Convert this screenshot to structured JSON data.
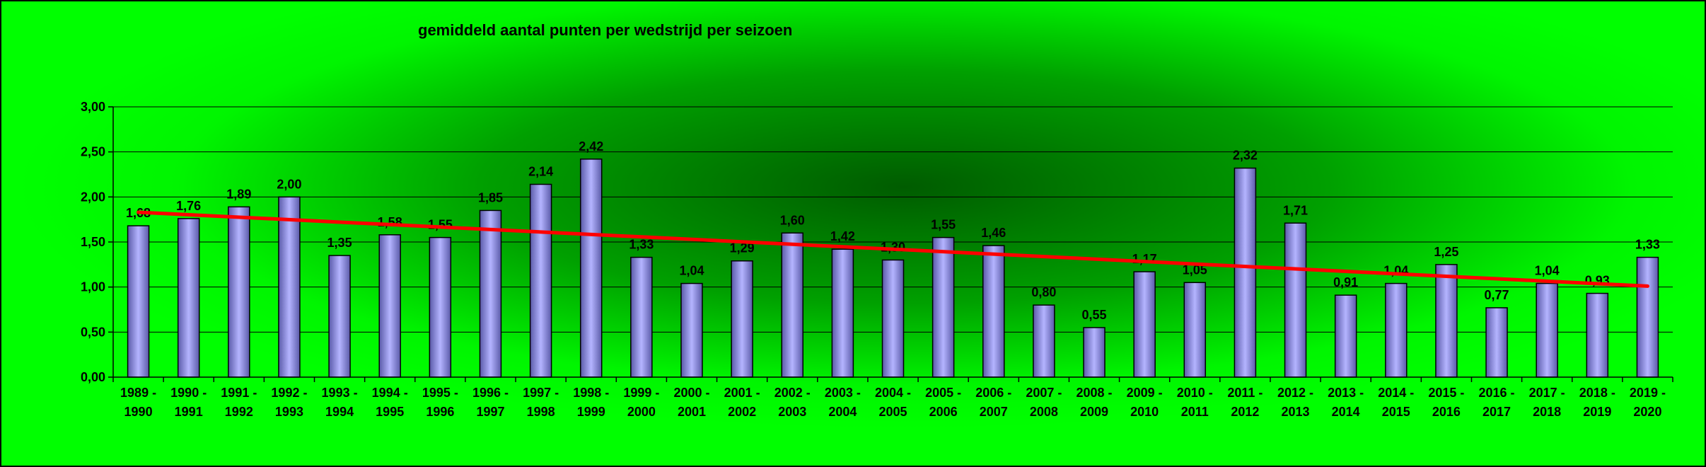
{
  "chart_data": {
    "type": "bar",
    "title": "gemiddeld aantal punten per wedstrijd per seizoen",
    "xlabel": "",
    "ylabel": "",
    "ylim": [
      0,
      3
    ],
    "ytick_values": [
      0,
      0.5,
      1,
      1.5,
      2,
      2.5,
      3
    ],
    "ytick_labels": [
      "0,00",
      "0,50",
      "1,00",
      "1,50",
      "2,00",
      "2,50",
      "3,00"
    ],
    "grid": true,
    "legend": "none",
    "categories": [
      [
        "1989 -",
        "1990"
      ],
      [
        "1990 -",
        "1991"
      ],
      [
        "1991 -",
        "1992"
      ],
      [
        "1992 -",
        "1993"
      ],
      [
        "1993 -",
        "1994"
      ],
      [
        "1994 -",
        "1995"
      ],
      [
        "1995 -",
        "1996"
      ],
      [
        "1996 -",
        "1997"
      ],
      [
        "1997 -",
        "1998"
      ],
      [
        "1998 -",
        "1999"
      ],
      [
        "1999 -",
        "2000"
      ],
      [
        "2000 -",
        "2001"
      ],
      [
        "2001 -",
        "2002"
      ],
      [
        "2002 -",
        "2003"
      ],
      [
        "2003 -",
        "2004"
      ],
      [
        "2004 -",
        "2005"
      ],
      [
        "2005 -",
        "2006"
      ],
      [
        "2006 -",
        "2007"
      ],
      [
        "2007 -",
        "2008"
      ],
      [
        "2008 -",
        "2009"
      ],
      [
        "2009 -",
        "2010"
      ],
      [
        "2010 -",
        "2011"
      ],
      [
        "2011 -",
        "2012"
      ],
      [
        "2012 -",
        "2013"
      ],
      [
        "2013 -",
        "2014"
      ],
      [
        "2014 -",
        "2015"
      ],
      [
        "2015 -",
        "2016"
      ],
      [
        "2016 -",
        "2017"
      ],
      [
        "2017 -",
        "2018"
      ],
      [
        "2018 -",
        "2019"
      ],
      [
        "2019 -",
        "2020"
      ]
    ],
    "values": [
      1.68,
      1.76,
      1.89,
      2.0,
      1.35,
      1.58,
      1.55,
      1.85,
      2.14,
      2.42,
      1.33,
      1.04,
      1.29,
      1.6,
      1.42,
      1.3,
      1.55,
      1.46,
      0.8,
      0.55,
      1.17,
      1.05,
      2.32,
      1.71,
      0.91,
      1.04,
      1.25,
      0.77,
      1.04,
      0.93,
      1.33
    ],
    "value_labels": [
      "1,68",
      "1,76",
      "1,89",
      "2,00",
      "1,35",
      "1,58",
      "1,55",
      "1,85",
      "2,14",
      "2,42",
      "1,33",
      "1,04",
      "1,29",
      "1,60",
      "1,42",
      "1,30",
      "1,55",
      "1,46",
      "0,80",
      "0,55",
      "1,17",
      "1,05",
      "2,32",
      "1,71",
      "0,91",
      "1,04",
      "1,25",
      "0,77",
      "1,04",
      "0,93",
      "1,33"
    ],
    "trendline": {
      "type": "linear",
      "start": 1.83,
      "end": 1.01
    },
    "colors": {
      "bar_fill_edge": "#5a5aa8",
      "bar_fill_center": "#b4b4ff",
      "trendline": "#ff0000",
      "background_outer": "#00ff00",
      "background_inner": "#005c00"
    }
  }
}
